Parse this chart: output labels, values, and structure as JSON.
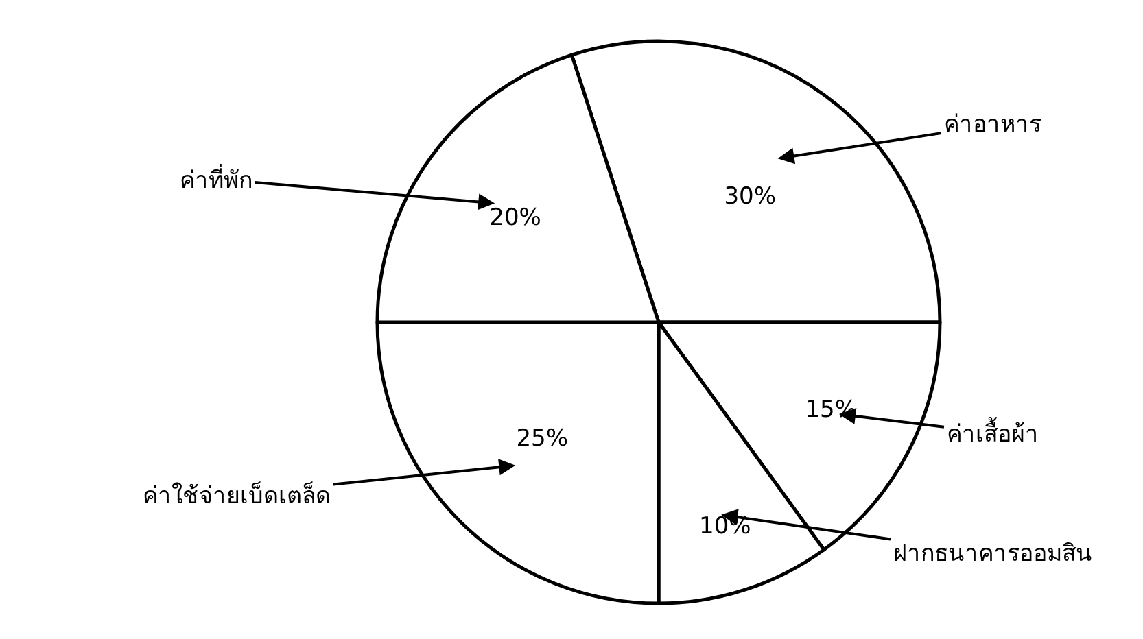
{
  "chart_data": {
    "type": "pie",
    "categories": [
      "ค่าอาหาร",
      "ค่าเสื้อผ้า",
      "ฝากธนาคารออมสิน",
      "ค่าใช้จ่ายเบ็ดเตล็ด",
      "ค่าที่พัก"
    ],
    "values": [
      30,
      15,
      10,
      25,
      20
    ],
    "value_labels": [
      "30%",
      "15%",
      "10%",
      "25%",
      "20%"
    ],
    "colors": [
      "#ffffff",
      "#ffffff",
      "#ffffff",
      "#ffffff",
      "#ffffff"
    ],
    "legend": false
  }
}
